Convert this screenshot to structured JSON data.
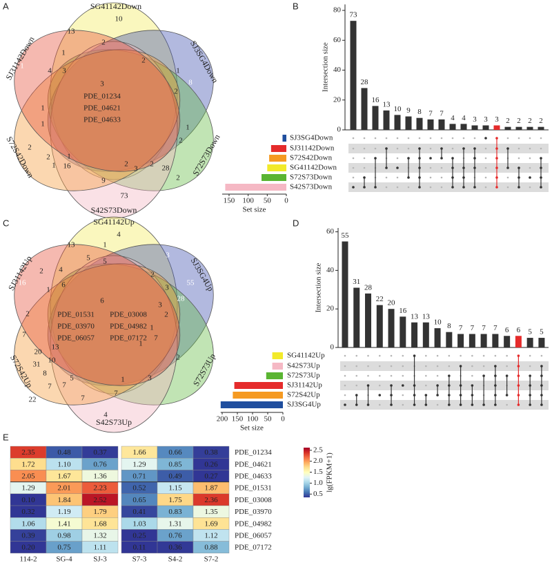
{
  "panels": [
    "A",
    "B",
    "C",
    "D",
    "E"
  ],
  "venn_a": {
    "sets": [
      "SG41142Down",
      "SJ3SG4Down",
      "S72S73Down",
      "S42S73Down",
      "S72S42Down",
      "SJ31142Down"
    ],
    "colors": [
      "#f3ec5c",
      "#3f4fae",
      "#63bb43",
      "#f3b3c0",
      "#f49a3a",
      "#e5503a"
    ],
    "regions": [
      13,
      10,
      1,
      1,
      4,
      2,
      2,
      3,
      1,
      8,
      3,
      2,
      1,
      1,
      2,
      1,
      16,
      9,
      2,
      3,
      2,
      28,
      2,
      1,
      2,
      73,
      1,
      2
    ],
    "center_genes": [
      "PDE_01234",
      "PDE_04621",
      "PDE_04633"
    ]
  },
  "upset_b": {
    "type": "bar",
    "ylabel": "Intersection size",
    "color": "#333333",
    "highlight": {
      "index": 13,
      "color": "#e52b2b"
    },
    "values": [
      73,
      28,
      16,
      13,
      10,
      9,
      8,
      7,
      7,
      4,
      4,
      3,
      3,
      3,
      2,
      2,
      2,
      2
    ],
    "ylim": [
      0,
      84
    ],
    "yticks": [
      0,
      20,
      40,
      60,
      80
    ],
    "set_names": [
      "SJ3SG4Down",
      "SJ31142Down",
      "S72S42Down",
      "SG41142Down",
      "S72S73Down",
      "S42S73Down"
    ],
    "set_colors": [
      "#1f4e9e",
      "#e52b2b",
      "#f59a22",
      "#f2ea2a",
      "#5ab532",
      "#f5b8c4"
    ],
    "set_sizes": [
      10,
      40,
      45,
      50,
      65,
      160
    ],
    "set_size_label": "Set size",
    "set_size_xlim": [
      168,
      0
    ],
    "set_size_ticks": [
      150,
      100,
      50,
      0
    ],
    "memberships": [
      [
        5
      ],
      [
        4,
        5
      ],
      [
        2,
        5
      ],
      [
        1,
        3
      ],
      [
        3
      ],
      [
        2,
        4
      ],
      [
        1,
        2,
        3,
        4,
        5
      ],
      [
        2
      ],
      [
        1,
        2
      ],
      [
        2,
        3,
        4,
        5
      ],
      [
        1,
        3,
        4,
        5
      ],
      [
        1,
        2,
        3,
        5
      ],
      [
        0
      ],
      [
        0,
        1,
        2,
        3,
        4,
        5
      ],
      [
        1,
        3
      ],
      [
        3,
        4,
        5
      ],
      [
        4
      ],
      [
        2,
        3,
        4,
        5
      ]
    ]
  },
  "venn_c": {
    "sets": [
      "SG41142Up",
      "SJ3SG4Up",
      "S72S73Up",
      "S42S73Up",
      "S72S42Up",
      "SJ31142Up"
    ],
    "colors": [
      "#f3ec5c",
      "#3f4fae",
      "#63bb43",
      "#f3b3c0",
      "#f49a3a",
      "#e5503a"
    ],
    "regions": [
      13,
      1,
      4,
      5,
      5,
      2,
      16,
      4,
      1,
      6,
      3,
      55,
      28,
      2,
      3,
      3,
      2,
      1,
      7,
      1,
      2,
      3,
      1,
      4,
      7,
      5,
      7,
      7,
      22,
      8,
      10,
      13,
      20,
      31,
      7,
      2,
      6,
      7
    ],
    "center_genes": [
      "PDE_01531",
      "PDE_03008",
      "PDE_03970",
      "PDE_04982",
      "PDE_06057",
      "PDE_07172"
    ]
  },
  "upset_d": {
    "type": "bar",
    "ylabel": "Intersection size",
    "color": "#333333",
    "highlight": {
      "index": 15,
      "color": "#e52b2b"
    },
    "values": [
      55,
      31,
      28,
      22,
      20,
      16,
      13,
      13,
      10,
      8,
      7,
      7,
      7,
      7,
      6,
      6,
      5,
      5
    ],
    "ylim": [
      0,
      62
    ],
    "yticks": [
      0,
      20,
      40,
      60
    ],
    "set_names": [
      "SG41142Up",
      "S42S73Up",
      "S72S73Up",
      "SJ31142Up",
      "S72S42Up",
      "SJ3SG4Up"
    ],
    "set_colors": [
      "#f2ea2a",
      "#f5b8c4",
      "#5ab532",
      "#e52b2b",
      "#f59a22",
      "#1f4e9e"
    ],
    "set_sizes": [
      35,
      35,
      55,
      160,
      165,
      205
    ],
    "set_size_label": "Set size",
    "set_size_xlim": [
      205,
      0
    ],
    "set_size_ticks": [
      200,
      150,
      100,
      50,
      0
    ],
    "memberships": [
      [
        5
      ],
      [
        4,
        5
      ],
      [
        3,
        5
      ],
      [
        4
      ],
      [
        3,
        4,
        5
      ],
      [
        3
      ],
      [
        0,
        3,
        4,
        5
      ],
      [
        4,
        5
      ],
      [
        3,
        4
      ],
      [
        2,
        3,
        4,
        5
      ],
      [
        1,
        3,
        4,
        5
      ],
      [
        3,
        4,
        5
      ],
      [
        2,
        5
      ],
      [
        1,
        2,
        3,
        4,
        5
      ],
      [
        2,
        4
      ],
      [
        0,
        1,
        2,
        3,
        4,
        5
      ],
      [
        2,
        3,
        4,
        5
      ],
      [
        1,
        2,
        3,
        4,
        5
      ]
    ]
  },
  "heatmap": {
    "type": "heatmap",
    "columns": [
      "114-2",
      "SG-4",
      "SJ-3",
      "S7-3",
      "S4-2",
      "S7-2"
    ],
    "rows": [
      "PDE_01234",
      "PDE_04621",
      "PDE_04633",
      "PDE_01531",
      "PDE_03008",
      "PDE_03970",
      "PDE_04982",
      "PDE_06057",
      "PDE_07172"
    ],
    "values": [
      [
        2.35,
        0.48,
        0.37,
        1.66,
        0.66,
        0.38
      ],
      [
        1.72,
        1.1,
        0.76,
        1.29,
        0.85,
        0.26
      ],
      [
        2.05,
        1.67,
        1.36,
        0.71,
        0.49,
        0.27
      ],
      [
        1.29,
        2.01,
        2.23,
        0.52,
        1.15,
        1.87
      ],
      [
        0.1,
        1.84,
        2.52,
        0.65,
        1.75,
        2.36
      ],
      [
        0.32,
        1.19,
        1.79,
        0.41,
        0.83,
        1.35
      ],
      [
        1.06,
        1.41,
        1.68,
        1.03,
        1.31,
        1.69
      ],
      [
        0.39,
        0.98,
        1.32,
        0.25,
        0.76,
        1.12
      ],
      [
        0.2,
        0.75,
        1.11,
        0.11,
        0.36,
        0.88
      ]
    ],
    "value_labels": [
      [
        "2.35",
        "0.48",
        "0.37",
        "1.66",
        "0.66",
        "0.38"
      ],
      [
        "1.72",
        "1.10",
        "0.76",
        "1.29",
        "0.85",
        "0.26"
      ],
      [
        "2.05",
        "1.67",
        "1.36",
        "0.71",
        "0.49",
        "0.27"
      ],
      [
        "1.29",
        "2.01",
        "2.23",
        "0.52",
        "1.15",
        "1.87"
      ],
      [
        "0.10",
        "1.84",
        "2.52",
        "0.65",
        "1.75",
        "2.36"
      ],
      [
        "0.32",
        "1.19",
        "1.79",
        "0.41",
        "0.83",
        "1.35"
      ],
      [
        "1.06",
        "1.41",
        "1.68",
        "1.03",
        "1.31",
        "1.69"
      ],
      [
        "0.39",
        "0.98",
        "1.32",
        "0.25",
        "0.76",
        "1.12"
      ],
      [
        "0.20",
        "0.75",
        "1.11",
        "0.11",
        "0.36",
        "0.88"
      ]
    ],
    "colorbar_label": "lg(FPKM+1)",
    "colorbar_lim": [
      0.35,
      2.62
    ],
    "colorbar_ticks": [
      {
        "value": 2.5,
        "label": "2.5"
      },
      {
        "value": 2.0,
        "label": "2.0"
      },
      {
        "value": 1.5,
        "label": "1.5"
      },
      {
        "value": 1.0,
        "label": "1.0"
      },
      {
        "value": 0.5,
        "label": "0.5"
      }
    ],
    "colormap": [
      "#313695",
      "#4575b4",
      "#74add1",
      "#abd9e9",
      "#e0f3f8",
      "#ffffbf",
      "#fee090",
      "#fdae61",
      "#f46d43",
      "#d73027",
      "#a50026"
    ]
  }
}
